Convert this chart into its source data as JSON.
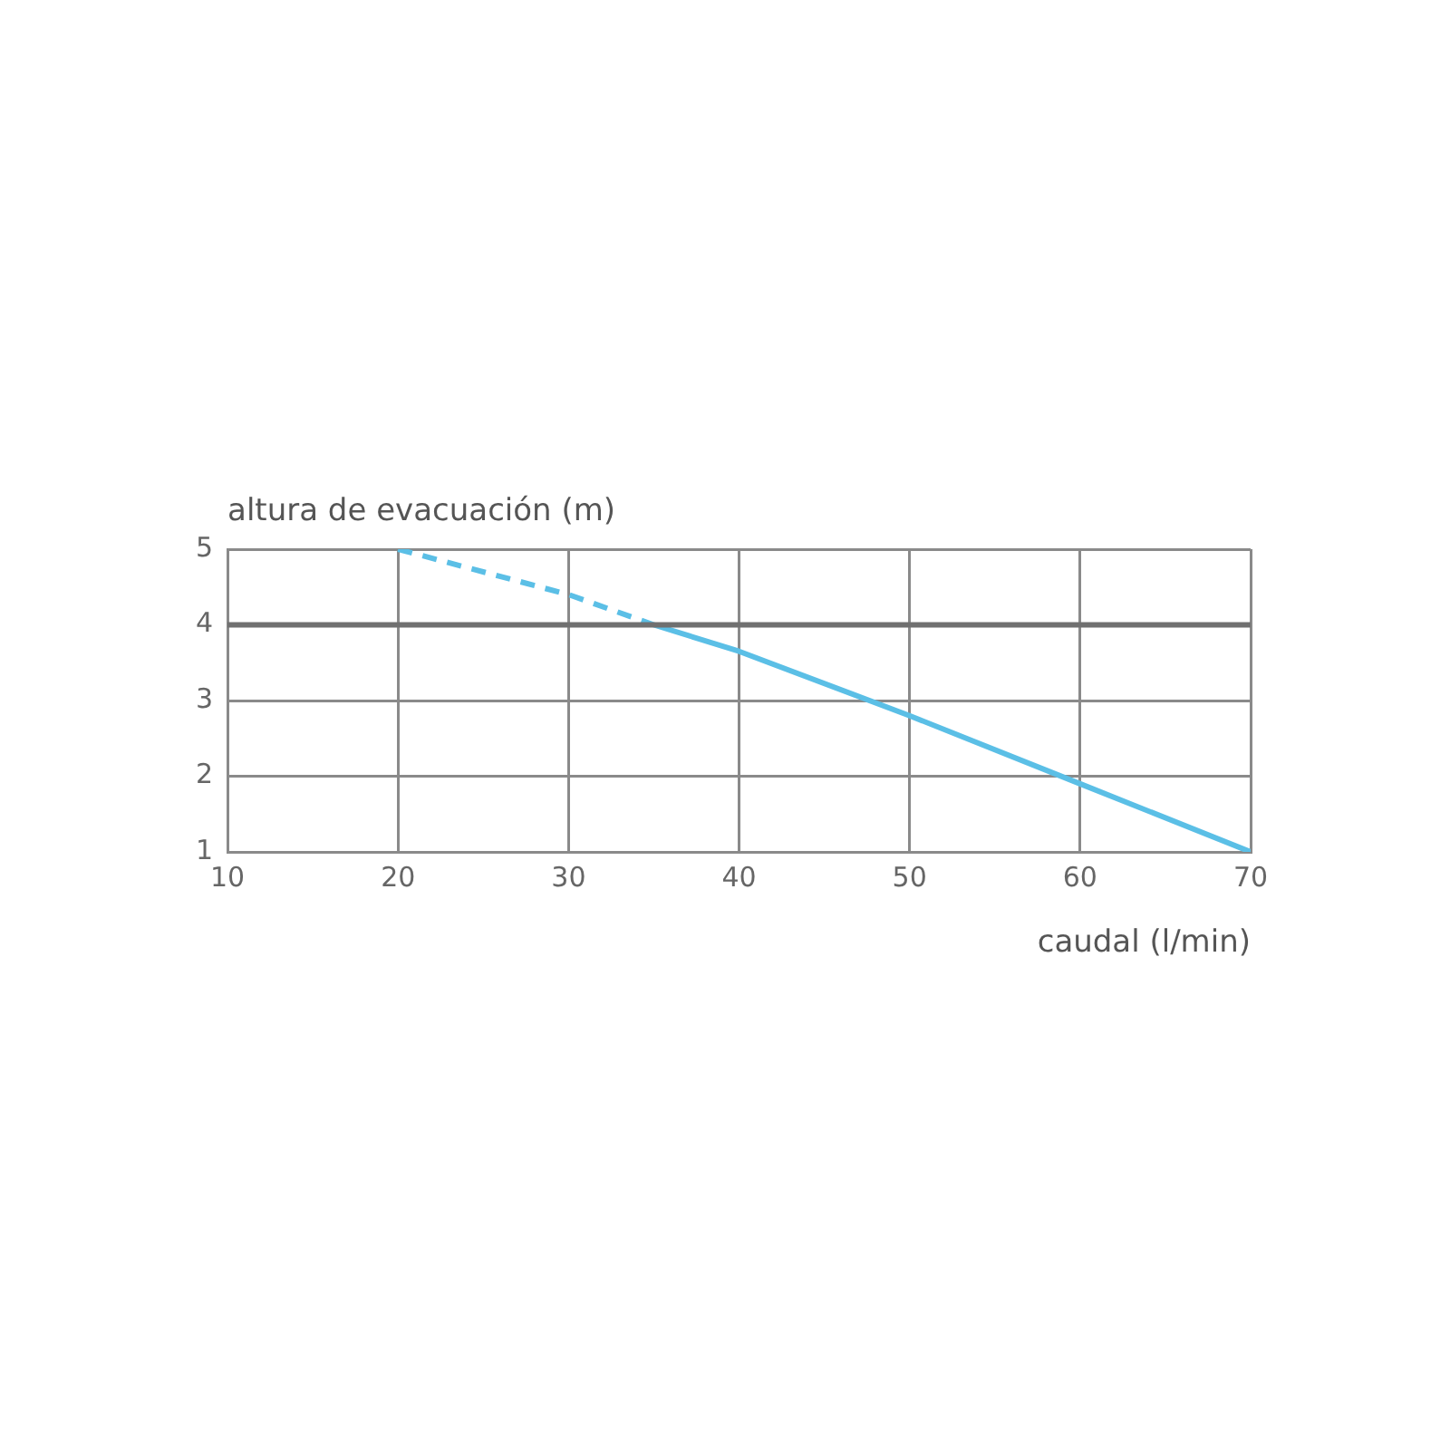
{
  "chart_data": {
    "type": "line",
    "xlabel": "caudal (l/min)",
    "ylabel": "altura de evacuación (m)",
    "xlim": [
      10,
      70
    ],
    "xticks": [
      10,
      20,
      30,
      40,
      50,
      60,
      70
    ],
    "ylim": [
      1,
      5
    ],
    "yticks": [
      1,
      2,
      3,
      4,
      5
    ],
    "grid": true,
    "legend": false,
    "marker": "none",
    "series": [
      {
        "color": "#5bbfe6",
        "x": [
          20,
          30,
          35
        ],
        "values": [
          5,
          4.4,
          4
        ],
        "line_style": "dashed"
      },
      {
        "color": "#5bbfe6",
        "x": [
          35,
          40,
          50,
          60,
          70
        ],
        "values": [
          4,
          3.65,
          2.8,
          1.9,
          1
        ],
        "line_style": "solid"
      }
    ],
    "ref_lines": [
      {
        "axis": "y",
        "value": 4,
        "color": "#707070"
      }
    ]
  }
}
